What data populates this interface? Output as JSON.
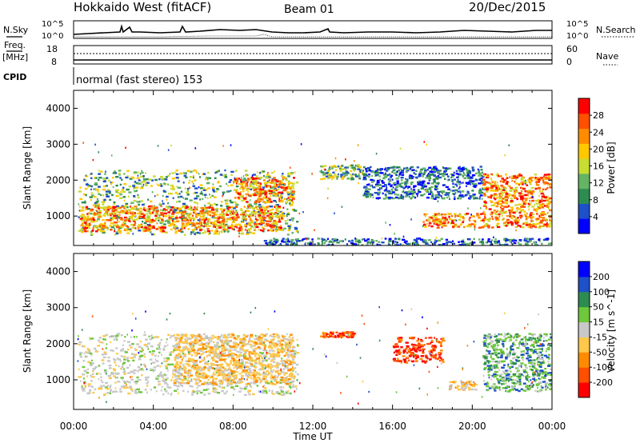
{
  "header": {
    "title": "Hokkaido West (fitACF)",
    "beam": "Beam 01",
    "date": "20/Dec/2015"
  },
  "top_panels": {
    "nsky_label": "N.Sky",
    "nsearch_label": "N.Search",
    "noise_ticks_left": [
      "10^5",
      "10^0"
    ],
    "noise_ticks_right": [
      "10^5",
      "10^0"
    ],
    "freq_label_1": "Freq.",
    "freq_label_2": "[MHz]",
    "freq_ticks": [
      "18",
      "8"
    ],
    "nave_label": "Nave",
    "nave_ticks": [
      "60",
      "0"
    ],
    "cpid_label": "CPID",
    "cpid_text": "normal (fast stereo) 153"
  },
  "chart_data": [
    {
      "type": "heatmap",
      "title": "",
      "xlabel": "Time UT",
      "ylabel": "Slant Range [km]",
      "xlim": [
        "00:00",
        "24:00"
      ],
      "ylim": [
        180,
        4500
      ],
      "x_ticks": [
        "00:00",
        "04:00",
        "08:00",
        "12:00",
        "16:00",
        "20:00",
        "00:00"
      ],
      "y_ticks": [
        1000,
        2000,
        3000,
        4000
      ],
      "colorbar": {
        "label": "Power [dB]",
        "ticks": [
          "28",
          "24",
          "20",
          "16",
          "12",
          "8",
          "4"
        ],
        "range": [
          0,
          30
        ],
        "colors": [
          "#0000ff",
          "#1e50c8",
          "#2d8c50",
          "#64b464",
          "#c8dc32",
          "#ffc800",
          "#ff8c00",
          "#ff5000",
          "#ff0000"
        ]
      },
      "regions": [
        {
          "t0": 0.2,
          "t1": 11.2,
          "r0": 500,
          "r1": 2300,
          "level": "medium"
        },
        {
          "t0": 0.3,
          "t1": 10.5,
          "r0": 600,
          "r1": 1300,
          "level": "high"
        },
        {
          "t0": 8.0,
          "t1": 11.0,
          "r0": 1400,
          "r1": 2100,
          "level": "high"
        },
        {
          "t0": 12.3,
          "t1": 14.5,
          "r0": 2050,
          "r1": 2450,
          "level": "medium"
        },
        {
          "t0": 14.5,
          "t1": 20.5,
          "r0": 1500,
          "r1": 2400,
          "level": "low"
        },
        {
          "t0": 17.5,
          "t1": 20.5,
          "r0": 700,
          "r1": 1100,
          "level": "high"
        },
        {
          "t0": 20.5,
          "t1": 23.9,
          "r0": 700,
          "r1": 2200,
          "level": "high"
        },
        {
          "t0": 9.5,
          "t1": 24.0,
          "r0": 200,
          "r1": 400,
          "level": "low"
        }
      ]
    },
    {
      "type": "heatmap",
      "title": "",
      "xlabel": "Time UT",
      "ylabel": "Slant Range [km]",
      "xlim": [
        "00:00",
        "24:00"
      ],
      "ylim": [
        180,
        4500
      ],
      "x_ticks": [
        "00:00",
        "04:00",
        "08:00",
        "12:00",
        "16:00",
        "20:00",
        "00:00"
      ],
      "y_ticks": [
        1000,
        2000,
        3000,
        4000
      ],
      "colorbar": {
        "label": "Velocity [m s^-1]",
        "ticks": [
          "200",
          "100",
          "50",
          "15",
          "-15",
          "-50",
          "-100",
          "-200"
        ],
        "range": [
          -250,
          250
        ],
        "colors": [
          "#ff0000",
          "#ff5000",
          "#ff8c00",
          "#ffc84b",
          "#c8c8c8",
          "#6ec83c",
          "#2d8c50",
          "#1e50c8",
          "#0000ff"
        ]
      },
      "regions": [
        {
          "t0": 0.2,
          "t1": 11.2,
          "r0": 600,
          "r1": 2300,
          "level": "near-zero"
        },
        {
          "t0": 5.0,
          "t1": 11.0,
          "r0": 900,
          "r1": 2300,
          "level": "slightly-negative"
        },
        {
          "t0": 12.3,
          "t1": 14.0,
          "r0": 2200,
          "r1": 2350,
          "level": "strongly-negative"
        },
        {
          "t0": 16.0,
          "t1": 18.5,
          "r0": 1500,
          "r1": 2200,
          "level": "strongly-negative"
        },
        {
          "t0": 18.8,
          "t1": 20.2,
          "r0": 750,
          "r1": 1000,
          "level": "slightly-negative"
        },
        {
          "t0": 20.5,
          "t1": 23.9,
          "r0": 700,
          "r1": 2300,
          "level": "positive"
        }
      ]
    }
  ]
}
